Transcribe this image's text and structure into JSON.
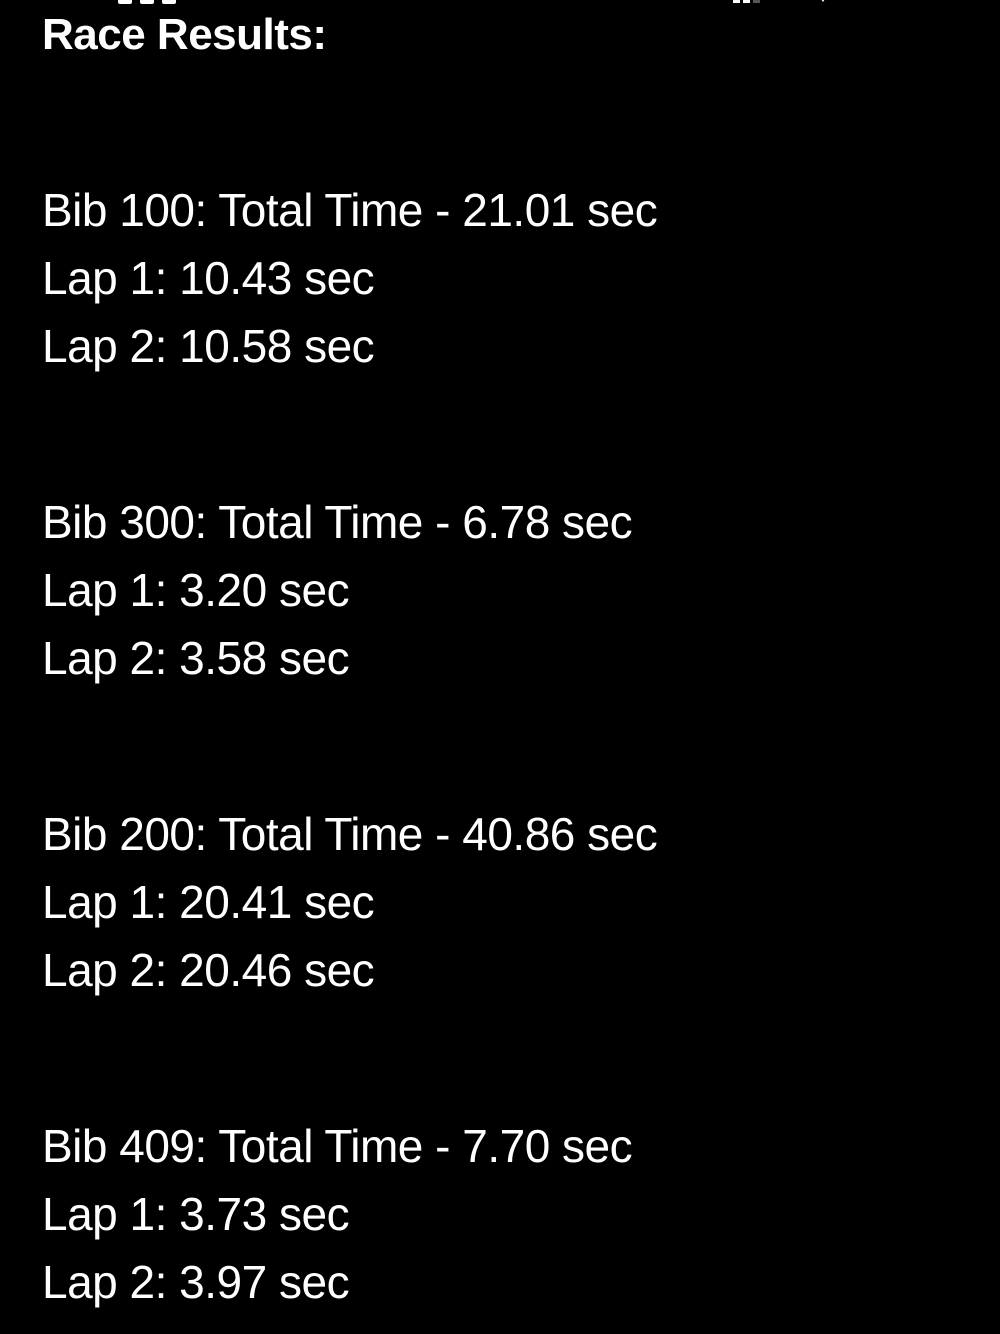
{
  "page": {
    "title": "Race Results:"
  },
  "status_bar": {
    "icons": [
      "signal-icon",
      "wifi-icon",
      "battery-icon"
    ]
  },
  "results": [
    {
      "header": "Bib 100: Total Time - 21.01 sec",
      "lap1": "Lap 1: 10.43 sec",
      "lap2": "Lap 2: 10.58 sec"
    },
    {
      "header": "Bib 300: Total Time - 6.78 sec",
      "lap1": "Lap 1: 3.20 sec",
      "lap2": "Lap 2: 3.58 sec"
    },
    {
      "header": "Bib 200: Total Time - 40.86 sec",
      "lap1": "Lap 1: 20.41 sec",
      "lap2": "Lap 2: 20.46 sec"
    },
    {
      "header": "Bib 409: Total Time - 7.70 sec",
      "lap1": "Lap 1: 3.73 sec",
      "lap2": "Lap 2: 3.97 sec"
    }
  ]
}
